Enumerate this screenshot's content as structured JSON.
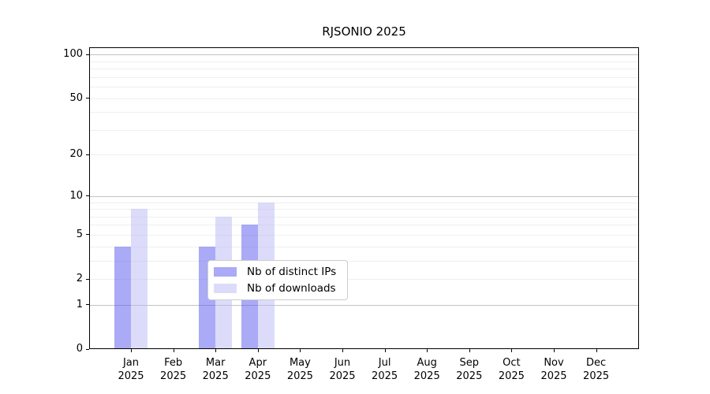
{
  "chart_data": {
    "type": "bar",
    "title": "RJSONIO 2025",
    "categories": [
      "Jan 2025",
      "Feb 2025",
      "Mar 2025",
      "Apr 2025",
      "May 2025",
      "Jun 2025",
      "Jul 2025",
      "Aug 2025",
      "Sep 2025",
      "Oct 2025",
      "Nov 2025",
      "Dec 2025"
    ],
    "series": [
      {
        "name": "Nb of distinct IPs",
        "values": [
          4,
          0,
          4,
          6,
          0,
          0,
          0,
          0,
          0,
          0,
          0,
          0
        ],
        "fill": "rgba(85,85,240,0.5)"
      },
      {
        "name": "Nb of downloads",
        "values": [
          8,
          0,
          7,
          9,
          0,
          0,
          0,
          0,
          0,
          0,
          0,
          0
        ],
        "fill": "rgba(185,185,246,0.5)"
      }
    ],
    "yscale": "log1p",
    "yticks": [
      0,
      1,
      2,
      5,
      10,
      20,
      50,
      100
    ],
    "major_gridlines": [
      1,
      10,
      100
    ],
    "minor_gridlines": [
      2,
      3,
      4,
      5,
      6,
      7,
      8,
      9,
      20,
      30,
      40,
      50,
      60,
      70,
      80,
      90
    ],
    "ylim": [
      0,
      112
    ],
    "grid": true,
    "legend_position": "lower-center",
    "colors": {
      "minor_grid": "#efefef",
      "major_grid": "#c3c3c3",
      "axis": "#000000",
      "text": "#000000",
      "legend_border": "#cccccc",
      "legend_bg": "#ffffff",
      "background": "#ffffff"
    }
  }
}
